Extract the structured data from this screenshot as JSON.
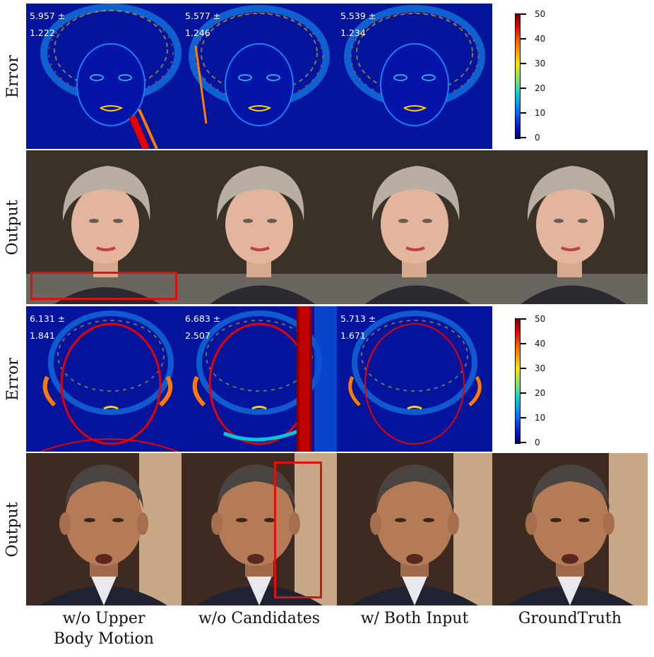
{
  "row_labels": [
    "Error",
    "Output",
    "Error",
    "Output"
  ],
  "column_labels": [
    {
      "line1": "w/o Upper",
      "line2": "Body Motion"
    },
    {
      "line1": "w/o Candidates",
      "line2": ""
    },
    {
      "line1": "w/ Both Input",
      "line2": ""
    },
    {
      "line1": "GroundTruth",
      "line2": ""
    }
  ],
  "subject_1": {
    "errors": [
      {
        "mean": "5.957 ±",
        "std": "1.222"
      },
      {
        "mean": "5.577 ±",
        "std": "1.246"
      },
      {
        "mean": "5.539 ±",
        "std": "1.234"
      }
    ]
  },
  "subject_2": {
    "errors": [
      {
        "mean": "6.131 ±",
        "std": "1.841"
      },
      {
        "mean": "6.683 ±",
        "std": "2.507"
      },
      {
        "mean": "5.713 ±",
        "std": "1.671"
      }
    ]
  },
  "colorbar": {
    "ticks": [
      "50",
      "40",
      "30",
      "20",
      "10",
      "0"
    ],
    "colors": [
      "#7a0000",
      "#e60000",
      "#ff7a00",
      "#f2e600",
      "#00c8e0",
      "#0014c8",
      "#00006e"
    ]
  },
  "highlight_color": "#e01010"
}
